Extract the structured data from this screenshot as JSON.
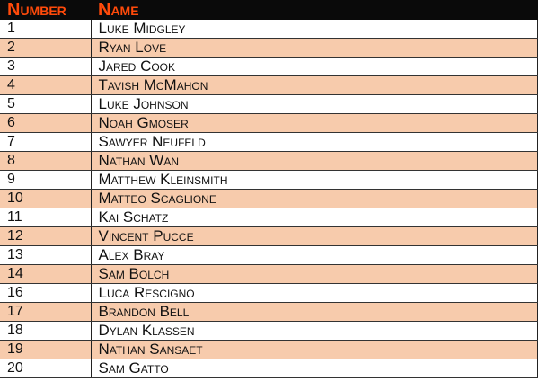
{
  "table": {
    "headers": [
      "Number",
      "Name"
    ],
    "rows": [
      [
        "1",
        "Luke Midgley"
      ],
      [
        "2",
        "Ryan Love"
      ],
      [
        "3",
        "Jared Cook"
      ],
      [
        "4",
        "Tavish McMahon"
      ],
      [
        "5",
        "Luke Johnson"
      ],
      [
        "6",
        "Noah Gmoser"
      ],
      [
        "7",
        "Sawyer Neufeld"
      ],
      [
        "8",
        "Nathan Wan"
      ],
      [
        "9",
        "Matthew Kleinsmith"
      ],
      [
        "10",
        "Matteo Scaglione"
      ],
      [
        "11",
        "Kai Schatz"
      ],
      [
        "12",
        "Vincent Pucce"
      ],
      [
        "13",
        "Alex Bray"
      ],
      [
        "14",
        "Sam Bolch"
      ],
      [
        "16",
        "Luca Rescigno"
      ],
      [
        "17",
        "Brandon Bell"
      ],
      [
        "18",
        "Dylan Klassen"
      ],
      [
        "19",
        "Nathan Sansaet"
      ],
      [
        "20",
        "Sam Gatto"
      ]
    ]
  },
  "colors": {
    "header_bg": "#0a0a0a",
    "header_text": "#ff4a0a",
    "alt_row": "#f7cbac"
  }
}
